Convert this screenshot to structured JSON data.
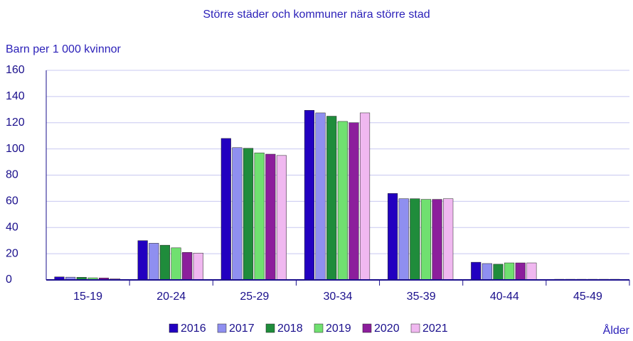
{
  "chart_data": {
    "type": "bar",
    "title": "Större städer och kommuner nära större stad",
    "y_label": "Barn per 1 000 kvinnor",
    "x_label": "Ålder",
    "categories": [
      "15-19",
      "20-24",
      "25-29",
      "30-34",
      "35-39",
      "40-44",
      "45-49"
    ],
    "series": [
      {
        "name": "2016",
        "color": "#2200c0",
        "values": [
          2.3,
          30,
          108,
          129.5,
          66,
          13.5,
          0.5
        ]
      },
      {
        "name": "2017",
        "color": "#8f8ff0",
        "values": [
          2.1,
          28,
          101,
          127.5,
          62,
          12.5,
          0.5
        ]
      },
      {
        "name": "2018",
        "color": "#1f8c3b",
        "values": [
          2.0,
          26.5,
          100.5,
          125,
          62,
          12,
          0.5
        ]
      },
      {
        "name": "2019",
        "color": "#70e070",
        "values": [
          1.6,
          24.5,
          97,
          121,
          61.5,
          13,
          0.5
        ]
      },
      {
        "name": "2020",
        "color": "#8c1e9c",
        "values": [
          1.5,
          21,
          96,
          120,
          61.5,
          13,
          0.5
        ]
      },
      {
        "name": "2021",
        "color": "#f0b8f0",
        "values": [
          1.0,
          20.5,
          95,
          127.5,
          62,
          13,
          0.5
        ]
      }
    ],
    "ylim": [
      0,
      160
    ],
    "yticks": [
      0,
      20,
      40,
      60,
      80,
      100,
      120,
      140,
      160
    ],
    "grid": true
  }
}
